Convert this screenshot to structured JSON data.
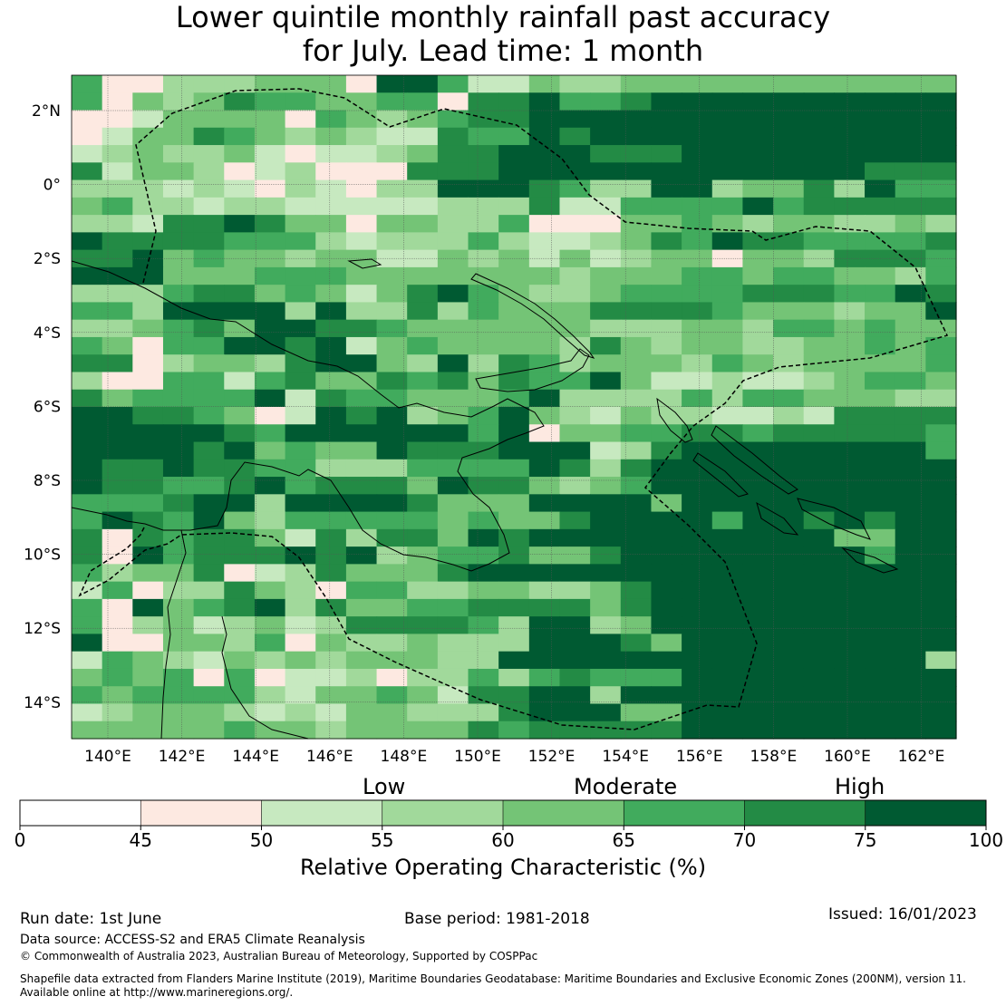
{
  "title": {
    "line1": "Lower quintile monthly rainfall past accuracy",
    "line2": "for July. Lead time: 1 month"
  },
  "map": {
    "lat_labels": [
      "2°N",
      "0°",
      "2°S",
      "4°S",
      "6°S",
      "8°S",
      "10°S",
      "12°S",
      "14°S"
    ],
    "lon_labels": [
      "140°E",
      "142°E",
      "144°E",
      "146°E",
      "148°E",
      "150°E",
      "152°E",
      "154°E",
      "156°E",
      "158°E",
      "160°E",
      "162°E"
    ],
    "grid_bins": "0123456",
    "grid": [
      "400222333066411322333333333333",
      "403235443344055644566666666666",
      "001333304323455666666666666665",
      "013354323211544656666666666665",
      "123223101123556665556666666666",
      "513320120005556666666666665555",
      "222121021022666542266233526444",
      "342212211111222511444464555554",
      "221556533033224000334323322323",
      "655554442122242112354655444455",
      "556343323311323131233033255544",
      "666333444333333323334434433244",
      "222455343135643223444455544656",
      "442666626225243335555433323365",
      "223453665543333332223324434334",
      "430446656134333325323322334343",
      "550233256632625423332432333343",
      "200441453354535446311211234433",
      "534444615443334622224244333221",
      "665543016562346321322112155555",
      "66666546666664603344554555554",
      "666656343365556661256666666644",
      "655655442224444652566666666666",
      "655445645553655323466666666666",
      "444566266665333666636666666663",
      "465463244444343356666466565663",
      "505455315255365666666666633664",
      "506455565623445335666666664665",
      "423350125333566666666666666666",
      "140225320442233223566666666666",
      "406345625334455553566666666666",
      "402312312555542662366666666666",
      "600332403223222666536666666666",
      "143213232333226666666666666622",
      "343404011202242454446666666666",
      "434444213343155662666666666663",
      "123332121332225666336666666663",
      "333334332333354555556666666664"
    ],
    "colors": [
      "#ffffff",
      "#fde9e1",
      "#c7e9c0",
      "#a1d99b",
      "#74c476",
      "#41ab5d",
      "#238b45",
      "#005a32"
    ]
  },
  "colorbar": {
    "category_labels": [
      "Low",
      "Moderate",
      "High"
    ],
    "tick_labels": [
      "0",
      "45",
      "50",
      "55",
      "60",
      "65",
      "70",
      "75",
      "100"
    ],
    "colors": [
      "#ffffff",
      "#fde9e1",
      "#c7e9c0",
      "#a1d99b",
      "#74c476",
      "#41ab5d",
      "#238b45",
      "#005a32"
    ],
    "title": "Relative Operating Characteristic (%)"
  },
  "footer": {
    "run_date": "Run date: 1st June",
    "base_period": "Base period: 1981-2018",
    "issued": "Issued: 16/01/2023",
    "data_source": "Data source: ACCESS-S2 and ERA5 Climate Reanalysis",
    "copyright": "© Commonwealth of Australia 2023, Australian Bureau of Meteorology, Supported by COSPPac",
    "shapefile_line1": "Shapefile data extracted from Flanders Marine Institute (2019), Maritime Boundaries Geodatabase: Maritime Boundaries and Exclusive Economic Zones (200NM), version 11.",
    "shapefile_line2": "Available online at http://www.marineregions.org/."
  }
}
